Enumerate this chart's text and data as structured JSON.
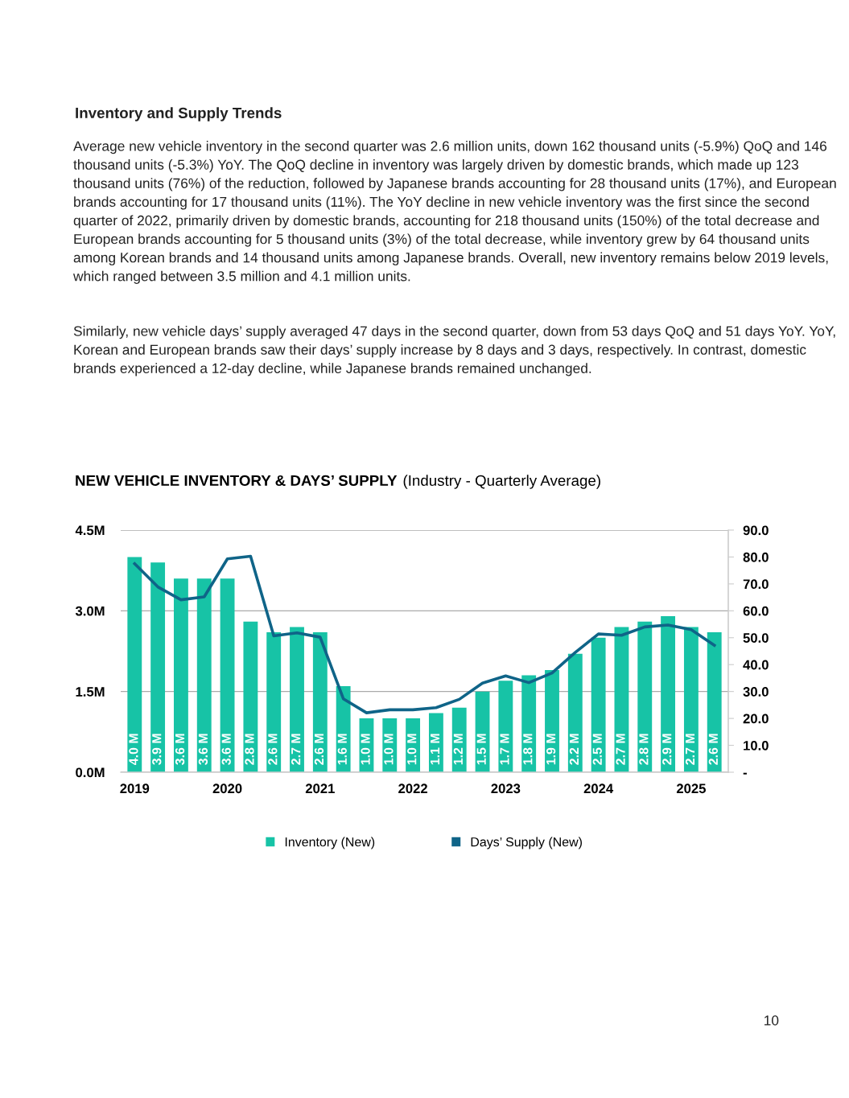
{
  "chart_data": {
    "type": "bar",
    "title": "NEW VEHICLE INVENTORY & DAYS’ SUPPLY",
    "subtitle": "(Industry - Quarterly Average)",
    "annotations": [
      "Inventory and Supply Trends",
      "Average new vehicle inventory in the second quarter was 2.6 million units, down 162 thousand units (-5.9%) QoQ and 146 thousand units (-5.3%) YoY. The QoQ decline in inventory was largely driven by domestic brands, which made up 123 thousand units (76%) of the reduction, followed by Japanese brands accounting for 28 thousand units (17%), and European brands accounting for 17 thousand units (11%). The YoY decline in new vehicle inventory was the first since the second quarter of 2022, primarily driven by domestic brands, accounting for 218 thousand units (150%) of the total decrease and European brands accounting for 5 thousand units (3%) of the total decrease, while inventory grew by 64 thousand units among Korean brands and 14 thousand units among Japanese brands. Overall, new inventory remains below 2019 levels, which ranged between 3.5 million and 4.1 million units.",
      "Similarly, new vehicle days’ supply averaged 47 days in the second quarter, down from 53 days QoQ and 51 days YoY. YoY, Korean and European brands saw their days’ supply increase by 8 days and 3 days, respectively. In contrast, domestic brands experienced a 12-day decline, while Japanese brands remained unchanged.",
      "10"
    ],
    "categories": [
      "2019",
      null,
      null,
      null,
      "2020",
      null,
      null,
      null,
      "2021",
      null,
      null,
      null,
      "2022",
      null,
      null,
      null,
      "2023",
      null,
      null,
      null,
      "2024",
      null,
      null,
      null,
      "2025",
      null
    ],
    "series": [
      {
        "name": "Inventory (New)",
        "color": "#17c3a6",
        "values": [
          4.0,
          3.9,
          3.6,
          3.6,
          3.6,
          2.8,
          2.6,
          2.7,
          2.6,
          1.6,
          1.0,
          1.0,
          1.0,
          1.1,
          1.2,
          1.5,
          1.7,
          1.8,
          1.9,
          2.2,
          2.5,
          2.7,
          2.8,
          2.9,
          2.7,
          2.6
        ],
        "value_labels": [
          "4.0 M",
          "3.9 M",
          "3.6 M",
          "3.6 M",
          "3.6 M",
          "2.8 M",
          "2.6 M",
          "2.7 M",
          "2.6 M",
          "1.6 M",
          "1.0 M",
          "1.0 M",
          "1.0 M",
          "1.1 M",
          "1.2 M",
          "1.5 M",
          "1.7 M",
          "1.8 M",
          "1.9 M",
          "2.2 M",
          "2.5 M",
          "2.7 M",
          "2.8 M",
          "2.9 M",
          "2.7 M",
          "2.6 M"
        ]
      },
      {
        "name": "Days’ Supply (New)",
        "type": "line",
        "axis": "y2",
        "color": "#0f6488",
        "values": [
          77.5,
          68.9,
          64.1,
          65.2,
          79.3,
          80.3,
          50.7,
          51.8,
          50.2,
          27.3,
          22.1,
          23.2,
          23.2,
          24.0,
          27.1,
          33.1,
          35.8,
          33.3,
          36.9,
          44.5,
          51.4,
          50.9,
          54.0,
          54.7,
          53.0,
          47.2
        ]
      }
    ],
    "ylim": [
      0,
      4.5
    ],
    "yticks": [
      {
        "value": 0,
        "label": "0.0M"
      },
      {
        "value": 1.5,
        "label": "1.5M"
      },
      {
        "value": 3.0,
        "label": "3.0M"
      },
      {
        "value": 4.5,
        "label": "4.5M"
      }
    ],
    "y2lim": [
      0,
      90
    ],
    "y2ticks": [
      {
        "value": 0,
        "label": "-"
      },
      {
        "value": 10,
        "label": "10.0"
      },
      {
        "value": 20,
        "label": "20.0"
      },
      {
        "value": 30,
        "label": "30.0"
      },
      {
        "value": 40,
        "label": "40.0"
      },
      {
        "value": 50,
        "label": "50.0"
      },
      {
        "value": 60,
        "label": "60.0"
      },
      {
        "value": 70,
        "label": "70.0"
      },
      {
        "value": 80,
        "label": "80.0"
      },
      {
        "value": 90,
        "label": "90.0"
      }
    ],
    "grid": "y",
    "legend": "bottom",
    "marker": "none",
    "line_style": "solid"
  }
}
